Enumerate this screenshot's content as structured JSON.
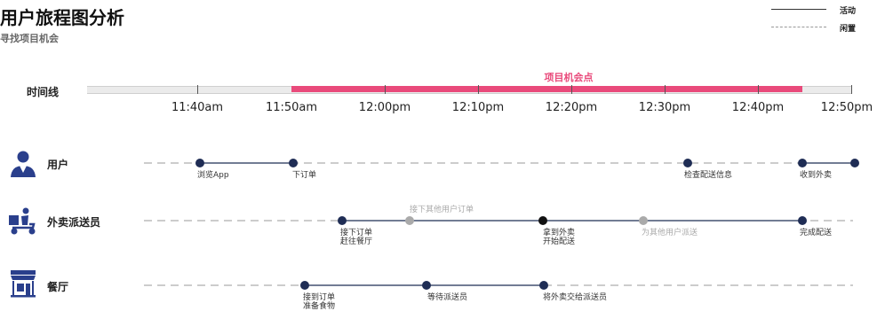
{
  "title": "用户旅程图分析",
  "subtitle": "寻找项目机会",
  "legend": {
    "active": "活动",
    "idle": "闲置"
  },
  "timeline": {
    "label": "时间线",
    "opportunity_label": "项目机会点",
    "ticks": [
      "11:40am",
      "11:50am",
      "12:00pm",
      "12:10pm",
      "12:20pm",
      "12:30pm",
      "12:40pm",
      "12:50pm"
    ]
  },
  "lanes": [
    {
      "name": "用户",
      "icon": "user-icon",
      "events": [
        {
          "lines": [
            "浏览App"
          ]
        },
        {
          "lines": [
            "下订单"
          ]
        },
        {
          "lines": [
            "检查配送信息"
          ]
        },
        {
          "lines": [
            "收到外卖"
          ]
        },
        {
          "lines": [
            ""
          ]
        }
      ]
    },
    {
      "name": "外卖派送员",
      "icon": "delivery-scooter-icon",
      "events": [
        {
          "lines": [
            "接下订单",
            "赶往餐厅"
          ]
        },
        {
          "lines": [
            "接下其他用户订单"
          ]
        },
        {
          "lines": [
            "拿到外卖",
            "开始配送"
          ]
        },
        {
          "lines": [
            "为其他用户派送"
          ]
        },
        {
          "lines": [
            "完成配送"
          ]
        }
      ]
    },
    {
      "name": "餐厅",
      "icon": "restaurant-icon",
      "events": [
        {
          "lines": [
            "接到订单",
            "准备食物"
          ]
        },
        {
          "lines": [
            "等待派送员"
          ]
        },
        {
          "lines": [
            "将外卖交给派送员"
          ]
        }
      ]
    }
  ],
  "colors": {
    "accent": "#e94a7b",
    "active": "#1f2d55",
    "idle": "#999999",
    "event_grey": "#aaaaaa"
  }
}
